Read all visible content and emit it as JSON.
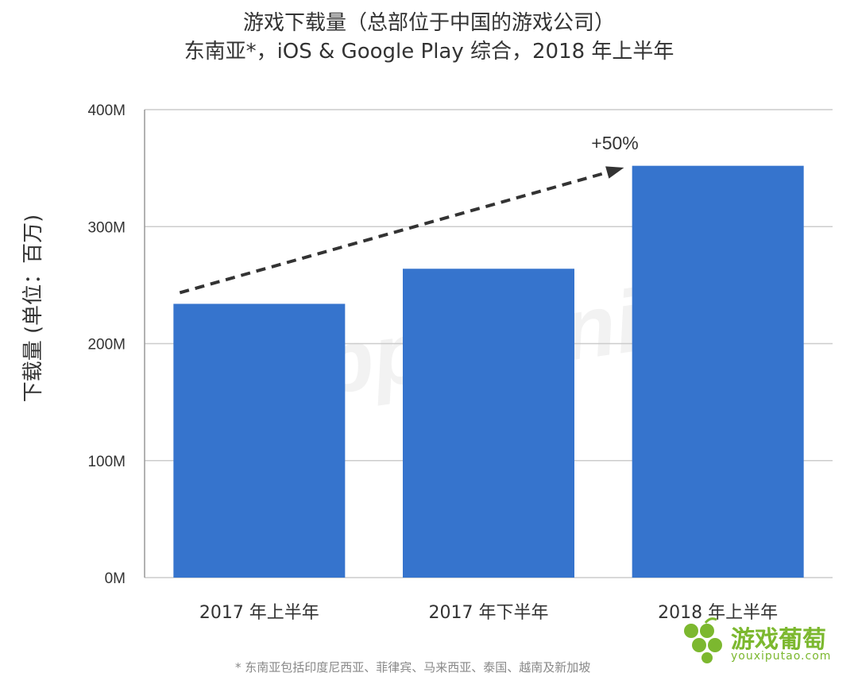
{
  "title_line1": "游戏下载量（总部位于中国的游戏公司）",
  "title_line2": "东南亚*，iOS & Google Play 综合，2018 年上半年",
  "footnote": "* 东南亚包括印度尼西亚、菲律宾、马来西亚、泰国、越南及新加坡",
  "watermark": "App Annie",
  "brand": {
    "name": "游戏葡萄",
    "url": "youxiputao.com"
  },
  "colors": {
    "bar": "#3674cd",
    "grid": "#cccccc",
    "arrow": "#333333"
  },
  "chart_data": {
    "type": "bar",
    "categories": [
      "2017 年上半年",
      "2017 年下半年",
      "2018 年上半年"
    ],
    "values": [
      234,
      264,
      352
    ],
    "ylabel": "下载量 (单位：百万)",
    "xlabel": "",
    "ylim": [
      0,
      400
    ],
    "yticks": [
      0,
      100,
      200,
      300,
      400
    ],
    "ytick_labels": [
      "0M",
      "100M",
      "200M",
      "300M",
      "400M"
    ],
    "annotation": "+50%",
    "grid": true
  }
}
